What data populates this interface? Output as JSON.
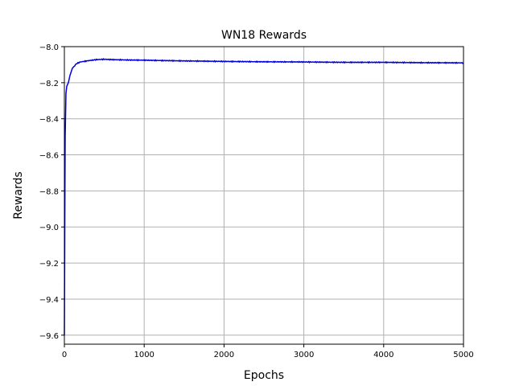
{
  "chart_data": {
    "type": "line",
    "title": "WN18 Rewards",
    "xlabel": "Epochs",
    "ylabel": "Rewards",
    "xlim": [
      0,
      5000
    ],
    "ylim": [
      -9.65,
      -8.0
    ],
    "xticks": [
      0,
      1000,
      2000,
      3000,
      4000,
      5000
    ],
    "xtick_labels": [
      "0",
      "1000",
      "2000",
      "3000",
      "4000",
      "5000"
    ],
    "yticks": [
      -9.6,
      -9.4,
      -9.2,
      -9.0,
      -8.8,
      -8.6,
      -8.4,
      -8.2,
      -8.0
    ],
    "ytick_labels": [
      "−9.6",
      "−9.4",
      "−9.2",
      "−9.0",
      "−8.8",
      "−8.6",
      "−8.4",
      "−8.2",
      "−8.0"
    ],
    "grid": true,
    "series": [
      {
        "color": "#0000dd",
        "x": [
          0,
          5,
          10,
          20,
          30,
          50,
          70,
          100,
          150,
          200,
          300,
          400,
          500,
          600,
          800,
          1000,
          1200,
          1500,
          2000,
          2500,
          3000,
          3500,
          4000,
          4500,
          5000
        ],
        "y": [
          -9.6,
          -9.0,
          -8.5,
          -8.26,
          -8.22,
          -8.2,
          -8.16,
          -8.12,
          -8.095,
          -8.085,
          -8.078,
          -8.072,
          -8.07,
          -8.072,
          -8.074,
          -8.075,
          -8.077,
          -8.079,
          -8.082,
          -8.084,
          -8.085,
          -8.087,
          -8.087,
          -8.089,
          -8.09
        ]
      }
    ]
  }
}
